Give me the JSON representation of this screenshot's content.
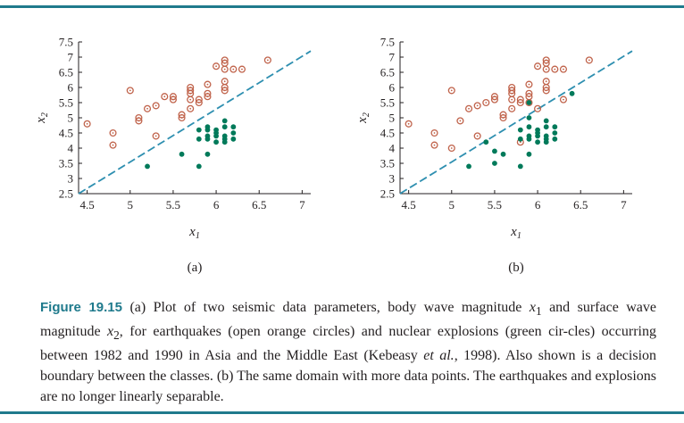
{
  "caption": {
    "label": "Figure 19.15",
    "parts": [
      {
        "t": "(a) Plot of two seismic data parameters, body wave magnitude "
      },
      {
        "t": "x",
        "i": true
      },
      {
        "t": "1",
        "sub": true
      },
      {
        "t": " and surface wave magnitude "
      },
      {
        "t": "x",
        "i": true
      },
      {
        "t": "2",
        "sub": true
      },
      {
        "t": ", for earthquakes (open orange circles) and nuclear explosions (green cir-cles) occurring between 1982 and 1990 in Asia and the Middle East (Kebeasy "
      },
      {
        "t": "et al.",
        "i": true
      },
      {
        "t": ", 1998). Also shown is a decision boundary between the classes. (b) The same domain with more data points. The earthquakes and explosions are no longer linearly separable."
      }
    ]
  },
  "colors": {
    "rule": "#1f7a8c",
    "earthquake": "#c0634b",
    "explosion": "#007a5a",
    "boundary": "#2e8fb0",
    "label": "#1f7a8c"
  },
  "chart_data": [
    {
      "type": "scatter",
      "panel_label": "(a)",
      "xlabel": "x",
      "xlabel_sub": "1",
      "ylabel": "x",
      "ylabel_sub": "2",
      "xlim": [
        4.4,
        7.1
      ],
      "ylim": [
        2.5,
        7.5
      ],
      "xticks": [
        4.5,
        5,
        5.5,
        6,
        6.5,
        7
      ],
      "xtick_labels": [
        "4.5",
        "5",
        "5.5",
        "6",
        "6.5",
        "7"
      ],
      "yticks": [
        2.5,
        3,
        3.5,
        4,
        4.5,
        5,
        5.5,
        6,
        6.5,
        7,
        7.5
      ],
      "ytick_labels": [
        "2.5",
        "3",
        "3.5",
        "4",
        "4.5",
        "5",
        "5.5",
        "6",
        "6.5",
        "7",
        "7.5"
      ],
      "boundary": [
        [
          4.4,
          2.5
        ],
        [
          7.1,
          7.2
        ]
      ],
      "series": [
        {
          "marker": "open-circle",
          "points": [
            [
              4.5,
              4.8
            ],
            [
              4.8,
              4.5
            ],
            [
              4.8,
              4.1
            ],
            [
              5.0,
              5.9
            ],
            [
              5.1,
              5.0
            ],
            [
              5.1,
              4.9
            ],
            [
              5.2,
              5.3
            ],
            [
              5.3,
              5.4
            ],
            [
              5.3,
              4.4
            ],
            [
              5.4,
              5.7
            ],
            [
              5.5,
              5.7
            ],
            [
              5.5,
              5.6
            ],
            [
              5.6,
              5.1
            ],
            [
              5.6,
              5.0
            ],
            [
              5.7,
              6.0
            ],
            [
              5.7,
              5.9
            ],
            [
              5.7,
              5.8
            ],
            [
              5.7,
              5.6
            ],
            [
              5.7,
              5.3
            ],
            [
              5.8,
              5.6
            ],
            [
              5.8,
              5.5
            ],
            [
              5.9,
              6.1
            ],
            [
              5.9,
              5.8
            ],
            [
              5.9,
              5.7
            ],
            [
              6.0,
              6.7
            ],
            [
              6.1,
              6.9
            ],
            [
              6.1,
              6.8
            ],
            [
              6.1,
              6.6
            ],
            [
              6.1,
              6.2
            ],
            [
              6.1,
              6.0
            ],
            [
              6.1,
              5.9
            ],
            [
              6.2,
              6.6
            ],
            [
              6.3,
              6.6
            ],
            [
              6.6,
              6.9
            ]
          ]
        },
        {
          "marker": "filled-dot",
          "points": [
            [
              5.2,
              3.4
            ],
            [
              5.6,
              3.8
            ],
            [
              5.8,
              3.4
            ],
            [
              5.8,
              4.6
            ],
            [
              5.8,
              4.3
            ],
            [
              5.9,
              4.7
            ],
            [
              5.9,
              4.6
            ],
            [
              5.9,
              4.4
            ],
            [
              5.9,
              4.3
            ],
            [
              5.9,
              3.8
            ],
            [
              6.0,
              4.6
            ],
            [
              6.0,
              4.5
            ],
            [
              6.0,
              4.4
            ],
            [
              6.0,
              4.2
            ],
            [
              6.1,
              4.9
            ],
            [
              6.1,
              4.7
            ],
            [
              6.1,
              4.4
            ],
            [
              6.1,
              4.3
            ],
            [
              6.1,
              4.2
            ],
            [
              6.2,
              4.7
            ],
            [
              6.2,
              4.5
            ],
            [
              6.2,
              4.3
            ]
          ]
        }
      ]
    },
    {
      "type": "scatter",
      "panel_label": "(b)",
      "xlabel": "x",
      "xlabel_sub": "1",
      "ylabel": "x",
      "ylabel_sub": "2",
      "xlim": [
        4.4,
        7.1
      ],
      "ylim": [
        2.5,
        7.5
      ],
      "xticks": [
        4.5,
        5,
        5.5,
        6,
        6.5,
        7
      ],
      "xtick_labels": [
        "4.5",
        "5",
        "5.5",
        "6",
        "6.5",
        "7"
      ],
      "yticks": [
        2.5,
        3,
        3.5,
        4,
        4.5,
        5,
        5.5,
        6,
        6.5,
        7,
        7.5
      ],
      "ytick_labels": [
        "2.5",
        "3",
        "3.5",
        "4",
        "4.5",
        "5",
        "5.5",
        "6",
        "6.5",
        "7",
        "7.5"
      ],
      "boundary": [
        [
          4.4,
          2.5
        ],
        [
          7.1,
          7.2
        ]
      ],
      "series": [
        {
          "marker": "open-circle",
          "points": [
            [
              4.5,
              4.8
            ],
            [
              4.8,
              4.5
            ],
            [
              4.8,
              4.1
            ],
            [
              5.0,
              5.9
            ],
            [
              5.0,
              4.0
            ],
            [
              5.1,
              4.9
            ],
            [
              5.2,
              5.3
            ],
            [
              5.3,
              5.4
            ],
            [
              5.3,
              4.4
            ],
            [
              5.4,
              5.5
            ],
            [
              5.5,
              5.7
            ],
            [
              5.5,
              5.6
            ],
            [
              5.6,
              5.1
            ],
            [
              5.6,
              5.0
            ],
            [
              5.7,
              6.0
            ],
            [
              5.7,
              5.9
            ],
            [
              5.7,
              5.8
            ],
            [
              5.7,
              5.6
            ],
            [
              5.7,
              5.3
            ],
            [
              5.8,
              5.6
            ],
            [
              5.8,
              5.5
            ],
            [
              5.8,
              4.2
            ],
            [
              5.9,
              6.1
            ],
            [
              5.9,
              5.8
            ],
            [
              5.9,
              5.7
            ],
            [
              5.9,
              5.5
            ],
            [
              6.0,
              6.7
            ],
            [
              6.0,
              5.3
            ],
            [
              6.1,
              6.9
            ],
            [
              6.1,
              6.8
            ],
            [
              6.1,
              6.6
            ],
            [
              6.1,
              6.2
            ],
            [
              6.1,
              6.0
            ],
            [
              6.1,
              5.9
            ],
            [
              6.2,
              6.6
            ],
            [
              6.3,
              6.6
            ],
            [
              6.3,
              5.6
            ],
            [
              6.6,
              6.9
            ]
          ]
        },
        {
          "marker": "filled-dot",
          "points": [
            [
              5.2,
              3.4
            ],
            [
              5.4,
              4.2
            ],
            [
              5.5,
              3.9
            ],
            [
              5.5,
              3.5
            ],
            [
              5.6,
              3.8
            ],
            [
              5.8,
              3.4
            ],
            [
              5.8,
              4.6
            ],
            [
              5.8,
              4.3
            ],
            [
              5.9,
              5.5
            ],
            [
              5.9,
              5.0
            ],
            [
              5.9,
              4.7
            ],
            [
              5.9,
              4.4
            ],
            [
              5.9,
              4.3
            ],
            [
              5.9,
              3.8
            ],
            [
              6.0,
              4.6
            ],
            [
              6.0,
              4.5
            ],
            [
              6.0,
              4.4
            ],
            [
              6.0,
              4.2
            ],
            [
              6.1,
              4.9
            ],
            [
              6.1,
              4.7
            ],
            [
              6.1,
              4.4
            ],
            [
              6.1,
              4.3
            ],
            [
              6.1,
              4.2
            ],
            [
              6.2,
              4.7
            ],
            [
              6.2,
              4.5
            ],
            [
              6.2,
              4.3
            ],
            [
              6.4,
              5.8
            ]
          ]
        }
      ]
    }
  ]
}
